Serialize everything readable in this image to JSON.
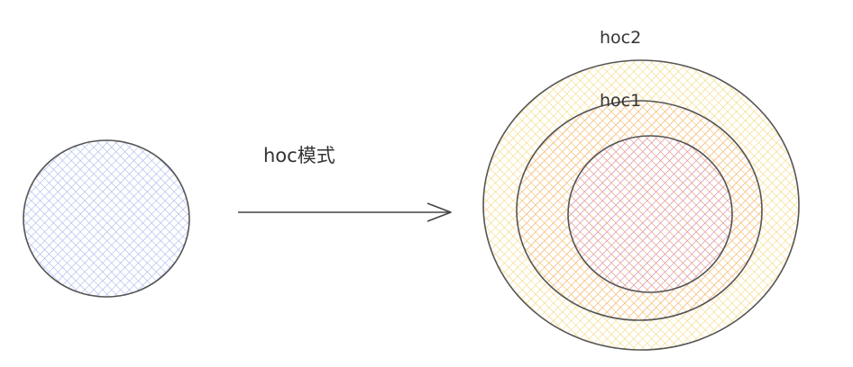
{
  "arrow_label": "hoc模式",
  "outer_ring_label": "hoc2",
  "middle_ring_label": "hoc1",
  "colors": {
    "stroke": "#555555",
    "left_circle_hatch": "#8fa3e6",
    "outer_ring_hatch": "#f2c94c",
    "middle_ring_hatch": "#f08a8a",
    "inner_circle_hatch": "#b58ee6"
  }
}
